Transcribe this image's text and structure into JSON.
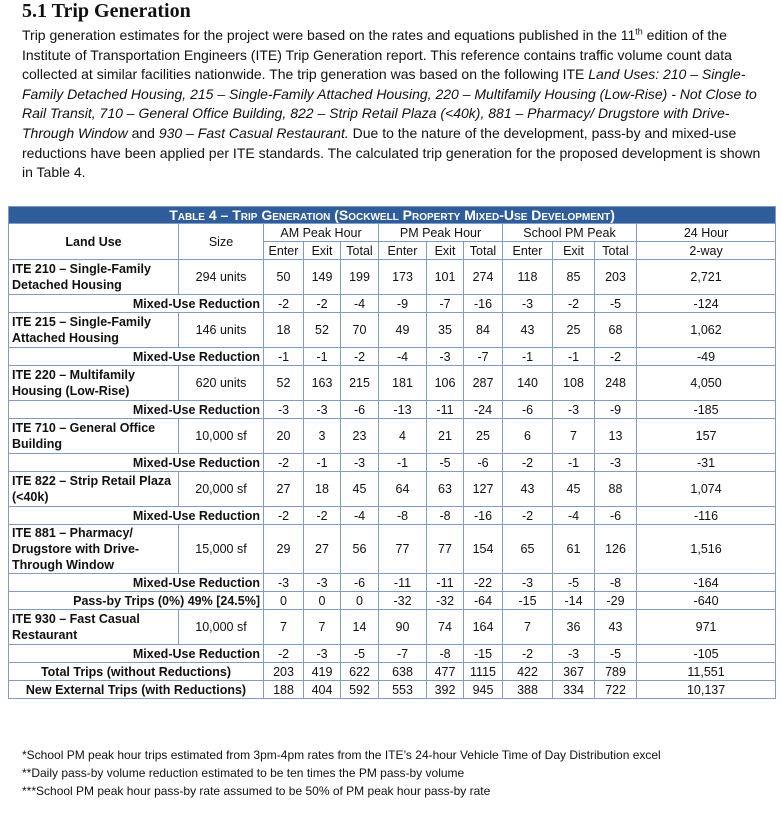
{
  "heading": "5.1 Trip Generation",
  "paragraph": [
    "Trip generation estimates for the project were based on the rates and equations published in the 11",
    "th",
    " edition of the Institute of Transportation Engineers (ITE) Trip Generation report. This reference contains traffic volume count data collected at similar facilities nationwide. The trip generation was based on the following ITE ",
    "Land Uses: 210 – Single-Family Detached Housing, 215 – Single-Family Attached Housing, 220 – Multifamily Housing (Low-Rise) - Not Close to Rail Transit, 710 – General Office Building, 822 – Strip Retail Plaza (<40k), 881 – Pharmacy/ Drugstore with Drive-Through Window",
    " and ",
    "930 – Fast Casual Restaurant.",
    " Due to the nature of the development, pass-by and mixed-use reductions have been applied per ITE standards. The calculated trip generation for the proposed development is shown in Table 4."
  ],
  "table": {
    "title": "Table 4 – Trip Generation (Sockwell Property Mixed-Use Development)",
    "header": {
      "land_use": "Land Use",
      "size": "Size",
      "groups": [
        "AM Peak Hour",
        "PM Peak Hour",
        "School PM Peak",
        "24 Hour"
      ],
      "sub": [
        "Enter",
        "Exit",
        "Total",
        "Enter",
        "Exit",
        "Total",
        "Enter",
        "Exit",
        "Total",
        "2-way"
      ]
    },
    "rows": [
      [
        "ITE 210 – Single-Family Detached Housing",
        "294 units",
        "50",
        "149",
        "199",
        "173",
        "101",
        "274",
        "118",
        "85",
        "203",
        "2,721"
      ],
      [
        "Mixed-Use Reduction",
        "-2",
        "-2",
        "-4",
        "-9",
        "-7",
        "-16",
        "-3",
        "-2",
        "-5",
        "-124"
      ],
      [
        "ITE 215 – Single-Family Attached Housing",
        "146 units",
        "18",
        "52",
        "70",
        "49",
        "35",
        "84",
        "43",
        "25",
        "68",
        "1,062"
      ],
      [
        "Mixed-Use Reduction",
        "-1",
        "-1",
        "-2",
        "-4",
        "-3",
        "-7",
        "-1",
        "-1",
        "-2",
        "-49"
      ],
      [
        "ITE 220 – Multifamily Housing (Low-Rise)",
        "620 units",
        "52",
        "163",
        "215",
        "181",
        "106",
        "287",
        "140",
        "108",
        "248",
        "4,050"
      ],
      [
        "Mixed-Use Reduction",
        "-3",
        "-3",
        "-6",
        "-13",
        "-11",
        "-24",
        "-6",
        "-3",
        "-9",
        "-185"
      ],
      [
        "ITE 710 – General Office Building",
        "10,000 sf",
        "20",
        "3",
        "23",
        "4",
        "21",
        "25",
        "6",
        "7",
        "13",
        "157"
      ],
      [
        "Mixed-Use Reduction",
        "-2",
        "-1",
        "-3",
        "-1",
        "-5",
        "-6",
        "-2",
        "-1",
        "-3",
        "-31"
      ],
      [
        "ITE 822 – Strip Retail Plaza (<40k)",
        "20,000 sf",
        "27",
        "18",
        "45",
        "64",
        "63",
        "127",
        "43",
        "45",
        "88",
        "1,074"
      ],
      [
        "Mixed-Use Reduction",
        "-2",
        "-2",
        "-4",
        "-8",
        "-8",
        "-16",
        "-2",
        "-4",
        "-6",
        "-116"
      ],
      [
        "ITE 881 – Pharmacy/ Drugstore with Drive-Through Window",
        "15,000 sf",
        "29",
        "27",
        "56",
        "77",
        "77",
        "154",
        "65",
        "61",
        "126",
        "1,516"
      ],
      [
        "Mixed-Use Reduction",
        "-3",
        "-3",
        "-6",
        "-11",
        "-11",
        "-22",
        "-3",
        "-5",
        "-8",
        "-164"
      ],
      [
        "Pass-by Trips (0%) 49% [24.5%]",
        "0",
        "0",
        "0",
        "-32",
        "-32",
        "-64",
        "-15",
        "-14",
        "-29",
        "-640"
      ],
      [
        "ITE 930 – Fast Casual Restaurant",
        "10,000 sf",
        "7",
        "7",
        "14",
        "90",
        "74",
        "164",
        "7",
        "36",
        "43",
        "971"
      ],
      [
        "Mixed-Use Reduction",
        "-2",
        "-3",
        "-5",
        "-7",
        "-8",
        "-15",
        "-2",
        "-3",
        "-5",
        "-105"
      ],
      [
        "Total Trips (without Reductions)",
        "203",
        "419",
        "622",
        "638",
        "477",
        "1115",
        "422",
        "367",
        "789",
        "11,551"
      ],
      [
        "New External Trips (with Reductions)",
        "188",
        "404",
        "592",
        "553",
        "392",
        "945",
        "388",
        "334",
        "722",
        "10,137"
      ]
    ]
  },
  "footnotes": [
    "*School PM peak hour trips estimated from 3pm-4pm rates from the ITE’s 24-hour Vehicle Time of Day Distribution excel",
    "**Daily pass-by volume reduction estimated to be ten times the PM pass-by volume",
    "***School PM peak hour pass-by rate assumed to be 50% of PM peak hour pass-by rate"
  ]
}
